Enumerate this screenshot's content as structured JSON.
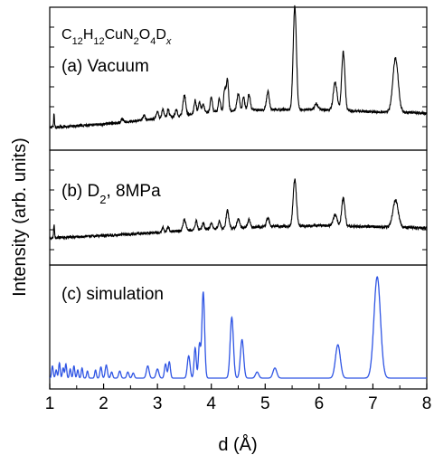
{
  "chart_data": {
    "type": "line",
    "xlabel": "d (Å)",
    "ylabel": "Intensity (arb. units)",
    "xlim": [
      1,
      8
    ],
    "x_ticks": [
      "1",
      "2",
      "3",
      "4",
      "5",
      "6",
      "7",
      "8"
    ],
    "formula": {
      "base": "C",
      "parts": [
        {
          "t": "C",
          "s": ""
        },
        {
          "t": "12",
          "s": "sub"
        },
        {
          "t": "H",
          "s": ""
        },
        {
          "t": "12",
          "s": "sub"
        },
        {
          "t": "CuN",
          "s": ""
        },
        {
          "t": "2",
          "s": "sub"
        },
        {
          "t": "O",
          "s": ""
        },
        {
          "t": "4",
          "s": "sub"
        },
        {
          "t": "D",
          "s": ""
        },
        {
          "t": "x",
          "s": "subi"
        }
      ]
    },
    "series": [
      {
        "label": "(a) Vacuum",
        "color": "#000000",
        "baseline": [
          [
            1.0,
            0.04
          ],
          [
            2.0,
            0.07
          ],
          [
            3.0,
            0.12
          ],
          [
            4.0,
            0.18
          ],
          [
            5.0,
            0.2
          ],
          [
            6.0,
            0.2
          ],
          [
            7.0,
            0.18
          ],
          [
            8.0,
            0.17
          ]
        ],
        "peaks": [
          [
            1.08,
            0.12,
            0.008
          ],
          [
            2.35,
            0.03,
            0.02
          ],
          [
            2.75,
            0.04,
            0.02
          ],
          [
            3.0,
            0.06,
            0.02
          ],
          [
            3.1,
            0.08,
            0.02
          ],
          [
            3.2,
            0.07,
            0.02
          ],
          [
            3.35,
            0.06,
            0.02
          ],
          [
            3.5,
            0.18,
            0.025
          ],
          [
            3.7,
            0.12,
            0.02
          ],
          [
            3.78,
            0.1,
            0.02
          ],
          [
            3.85,
            0.08,
            0.02
          ],
          [
            4.0,
            0.13,
            0.02
          ],
          [
            4.15,
            0.12,
            0.02
          ],
          [
            4.25,
            0.2,
            0.02
          ],
          [
            4.3,
            0.28,
            0.02
          ],
          [
            4.5,
            0.15,
            0.025
          ],
          [
            4.6,
            0.12,
            0.02
          ],
          [
            4.7,
            0.14,
            0.025
          ],
          [
            5.05,
            0.16,
            0.025
          ],
          [
            5.55,
            0.92,
            0.03
          ],
          [
            5.95,
            0.05,
            0.03
          ],
          [
            6.3,
            0.25,
            0.035
          ],
          [
            6.45,
            0.52,
            0.03
          ],
          [
            7.42,
            0.48,
            0.05
          ]
        ]
      },
      {
        "label": "(b) D",
        "label_sub": "2",
        "label_rest": ", 8MPa",
        "color": "#000000",
        "baseline": [
          [
            1.0,
            0.04
          ],
          [
            2.0,
            0.06
          ],
          [
            3.0,
            0.09
          ],
          [
            4.0,
            0.12
          ],
          [
            5.0,
            0.14
          ],
          [
            6.0,
            0.15
          ],
          [
            7.0,
            0.14
          ],
          [
            8.0,
            0.13
          ]
        ],
        "peaks": [
          [
            1.08,
            0.12,
            0.008
          ],
          [
            3.1,
            0.04,
            0.02
          ],
          [
            3.2,
            0.04,
            0.02
          ],
          [
            3.5,
            0.1,
            0.025
          ],
          [
            3.72,
            0.08,
            0.02
          ],
          [
            3.85,
            0.06,
            0.02
          ],
          [
            4.0,
            0.06,
            0.02
          ],
          [
            4.15,
            0.07,
            0.02
          ],
          [
            4.3,
            0.16,
            0.025
          ],
          [
            4.5,
            0.08,
            0.025
          ],
          [
            4.7,
            0.07,
            0.025
          ],
          [
            5.05,
            0.08,
            0.025
          ],
          [
            5.55,
            0.42,
            0.03
          ],
          [
            6.3,
            0.1,
            0.035
          ],
          [
            6.45,
            0.25,
            0.03
          ],
          [
            7.42,
            0.24,
            0.05
          ]
        ]
      },
      {
        "label": "(c) simulation",
        "color": "#2f55e4",
        "baseline": [
          [
            1.0,
            0.0
          ],
          [
            8.0,
            0.0
          ]
        ],
        "peaks": [
          [
            1.05,
            0.12,
            0.015
          ],
          [
            1.12,
            0.08,
            0.015
          ],
          [
            1.18,
            0.15,
            0.015
          ],
          [
            1.25,
            0.1,
            0.015
          ],
          [
            1.3,
            0.14,
            0.015
          ],
          [
            1.38,
            0.09,
            0.015
          ],
          [
            1.45,
            0.12,
            0.015
          ],
          [
            1.52,
            0.08,
            0.015
          ],
          [
            1.6,
            0.1,
            0.015
          ],
          [
            1.7,
            0.07,
            0.015
          ],
          [
            1.85,
            0.08,
            0.015
          ],
          [
            1.95,
            0.11,
            0.018
          ],
          [
            2.05,
            0.13,
            0.02
          ],
          [
            2.15,
            0.06,
            0.018
          ],
          [
            2.3,
            0.07,
            0.02
          ],
          [
            2.45,
            0.06,
            0.02
          ],
          [
            2.55,
            0.05,
            0.02
          ],
          [
            2.82,
            0.12,
            0.025
          ],
          [
            3.0,
            0.09,
            0.025
          ],
          [
            3.15,
            0.14,
            0.02
          ],
          [
            3.22,
            0.16,
            0.02
          ],
          [
            3.58,
            0.22,
            0.025
          ],
          [
            3.7,
            0.3,
            0.02
          ],
          [
            3.78,
            0.33,
            0.02
          ],
          [
            3.85,
            0.85,
            0.025
          ],
          [
            4.38,
            0.6,
            0.03
          ],
          [
            4.57,
            0.38,
            0.03
          ],
          [
            4.85,
            0.06,
            0.03
          ],
          [
            5.18,
            0.1,
            0.035
          ],
          [
            6.35,
            0.33,
            0.045
          ],
          [
            7.08,
            1.0,
            0.06
          ]
        ]
      }
    ]
  }
}
